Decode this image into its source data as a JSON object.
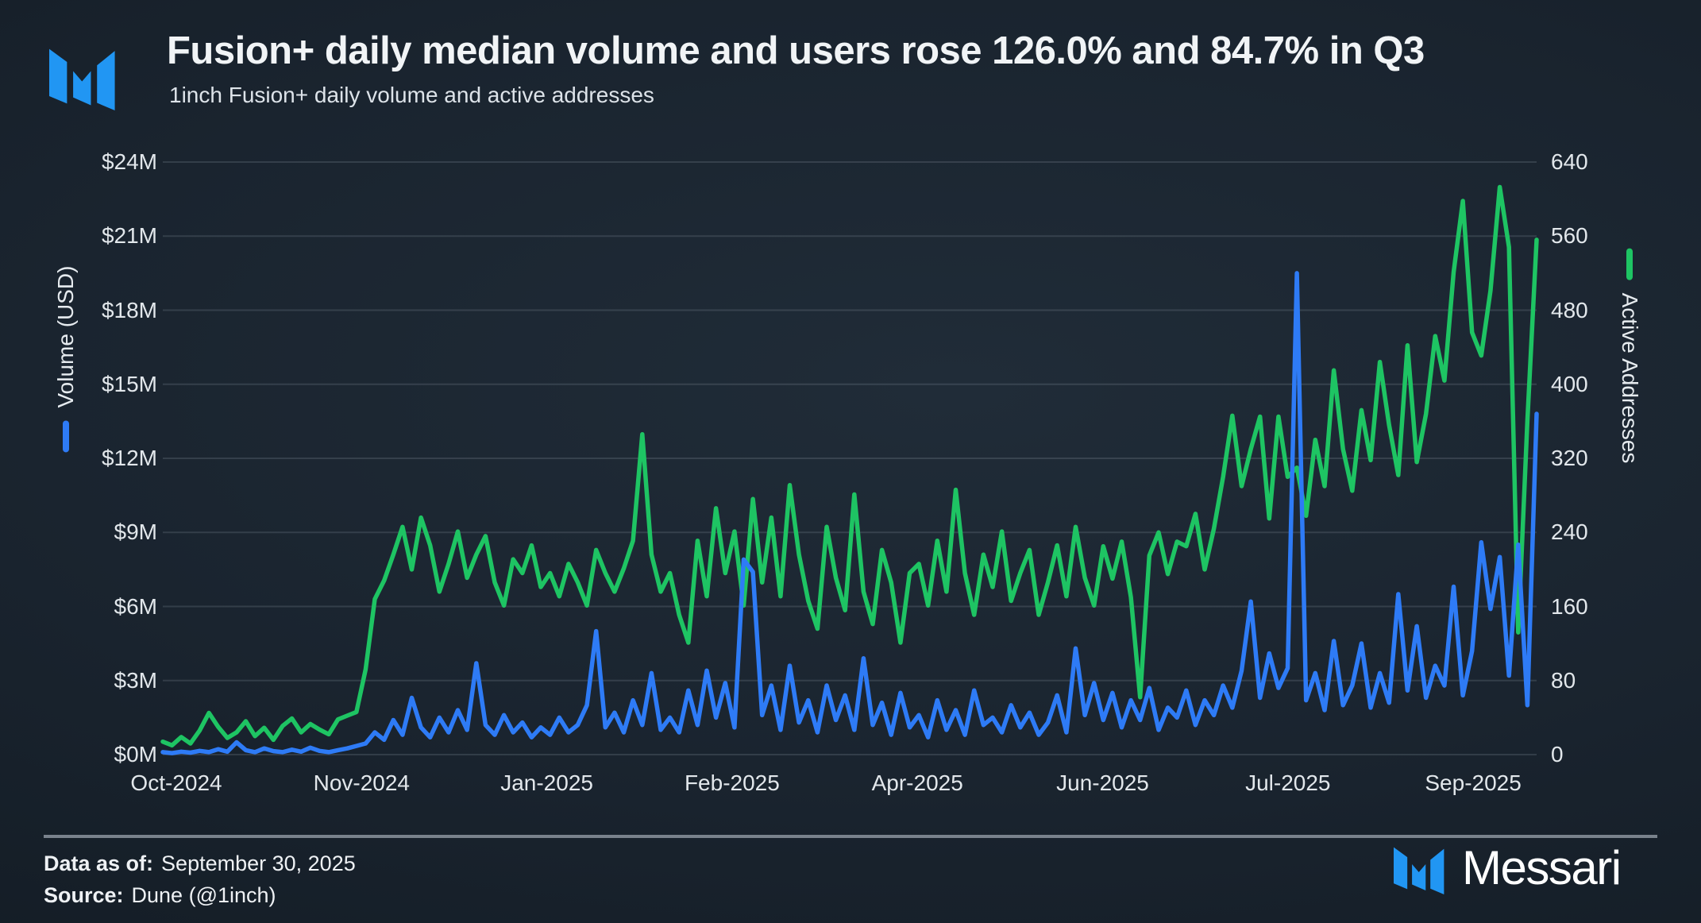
{
  "header": {},
  "chart_data": {
    "type": "line",
    "title": "Fusion+ daily median volume and users rose 126.0% and 84.7% in Q3",
    "subtitle": "1inch Fusion+ daily volume and active addresses",
    "grid": true,
    "legend_position": "axis-titles",
    "x_ticks": [
      "Oct-2024",
      "Nov-2024",
      "Jan-2025",
      "Feb-2025",
      "Apr-2025",
      "Jun-2025",
      "Jul-2025",
      "Sep-2025"
    ],
    "left_axis": {
      "label": "Volume (USD)",
      "ticks": [
        "$24M",
        "$21M",
        "$18M",
        "$15M",
        "$12M",
        "$9M",
        "$6M",
        "$3M",
        "$0M"
      ],
      "min": 0,
      "max": 24,
      "unit": "USD millions"
    },
    "right_axis": {
      "label": "Active Addresses",
      "ticks": [
        "640",
        "560",
        "480",
        "400",
        "320",
        "240",
        "160",
        "80",
        "0"
      ],
      "min": 0,
      "max": 640
    },
    "series": [
      {
        "name": "Active Addresses",
        "axis": "right",
        "color": "#1ec463",
        "values": [
          14,
          10,
          19,
          12,
          26,
          45,
          30,
          18,
          24,
          36,
          20,
          29,
          16,
          31,
          39,
          24,
          33,
          27,
          22,
          38,
          42,
          46,
          92,
          168,
          188,
          216,
          246,
          200,
          256,
          226,
          176,
          206,
          241,
          191,
          216,
          236,
          186,
          161,
          211,
          196,
          226,
          181,
          196,
          171,
          206,
          186,
          161,
          221,
          196,
          176,
          201,
          231,
          346,
          216,
          176,
          196,
          151,
          121,
          231,
          171,
          266,
          196,
          241,
          161,
          276,
          186,
          256,
          171,
          291,
          216,
          166,
          136,
          246,
          191,
          156,
          281,
          176,
          141,
          221,
          186,
          121,
          196,
          206,
          161,
          231,
          176,
          286,
          196,
          151,
          216,
          181,
          241,
          166,
          196,
          221,
          151,
          186,
          226,
          171,
          246,
          191,
          161,
          225,
          190,
          230,
          170,
          62,
          215,
          240,
          195,
          230,
          225,
          260,
          200,
          244,
          300,
          366,
          290,
          330,
          365,
          255,
          365,
          300,
          310,
          258,
          340,
          290,
          415,
          330,
          285,
          372,
          318,
          424,
          356,
          302,
          442,
          316,
          368,
          452,
          404,
          521,
          598,
          456,
          431,
          501,
          613,
          548,
          132,
          361,
          556
        ]
      },
      {
        "name": "Volume (USD)",
        "axis": "left",
        "color": "#2e7bf6",
        "values": [
          0.1,
          0.06,
          0.12,
          0.08,
          0.15,
          0.1,
          0.22,
          0.12,
          0.5,
          0.18,
          0.1,
          0.25,
          0.14,
          0.1,
          0.2,
          0.12,
          0.28,
          0.15,
          0.1,
          0.18,
          0.25,
          0.35,
          0.45,
          0.9,
          0.6,
          1.4,
          0.8,
          2.3,
          1.1,
          0.7,
          1.5,
          0.9,
          1.8,
          1.0,
          3.7,
          1.2,
          0.8,
          1.6,
          0.9,
          1.3,
          0.7,
          1.1,
          0.8,
          1.5,
          0.9,
          1.2,
          2.0,
          5.0,
          1.1,
          1.7,
          0.9,
          2.2,
          1.2,
          3.3,
          1.0,
          1.5,
          0.9,
          2.6,
          1.2,
          3.4,
          1.5,
          2.9,
          1.1,
          7.9,
          7.4,
          1.6,
          2.8,
          1.0,
          3.6,
          1.3,
          2.2,
          0.9,
          2.8,
          1.4,
          2.4,
          1.0,
          3.9,
          1.2,
          2.1,
          0.8,
          2.5,
          1.1,
          1.6,
          0.7,
          2.2,
          1.0,
          1.8,
          0.8,
          2.6,
          1.2,
          1.5,
          0.9,
          2.0,
          1.1,
          1.7,
          0.8,
          1.3,
          2.4,
          0.9,
          4.3,
          1.6,
          2.9,
          1.4,
          2.5,
          1.1,
          2.2,
          1.4,
          2.7,
          1.0,
          1.9,
          1.5,
          2.6,
          1.2,
          2.2,
          1.6,
          2.8,
          1.9,
          3.4,
          6.2,
          2.3,
          4.1,
          2.7,
          3.5,
          19.5,
          2.2,
          3.3,
          1.8,
          4.6,
          2.0,
          2.8,
          4.5,
          1.9,
          3.3,
          2.1,
          6.5,
          2.6,
          5.2,
          2.3,
          3.6,
          2.8,
          6.8,
          2.4,
          4.2,
          8.6,
          5.9,
          8.0,
          3.2,
          8.5,
          2.0,
          13.8
        ]
      }
    ]
  },
  "footer": {
    "data_as_of_label": "Data as of:",
    "data_as_of": "September 30, 2025",
    "source_label": "Source:",
    "source": "Dune (@1inch)",
    "brand": "Messari"
  },
  "colors": {
    "volume_line": "#2e7bf6",
    "addresses_line": "#1ec463",
    "background": "#17212c",
    "gridline": "rgba(186,200,212,0.16)",
    "brand_blue": "#2196f3"
  }
}
